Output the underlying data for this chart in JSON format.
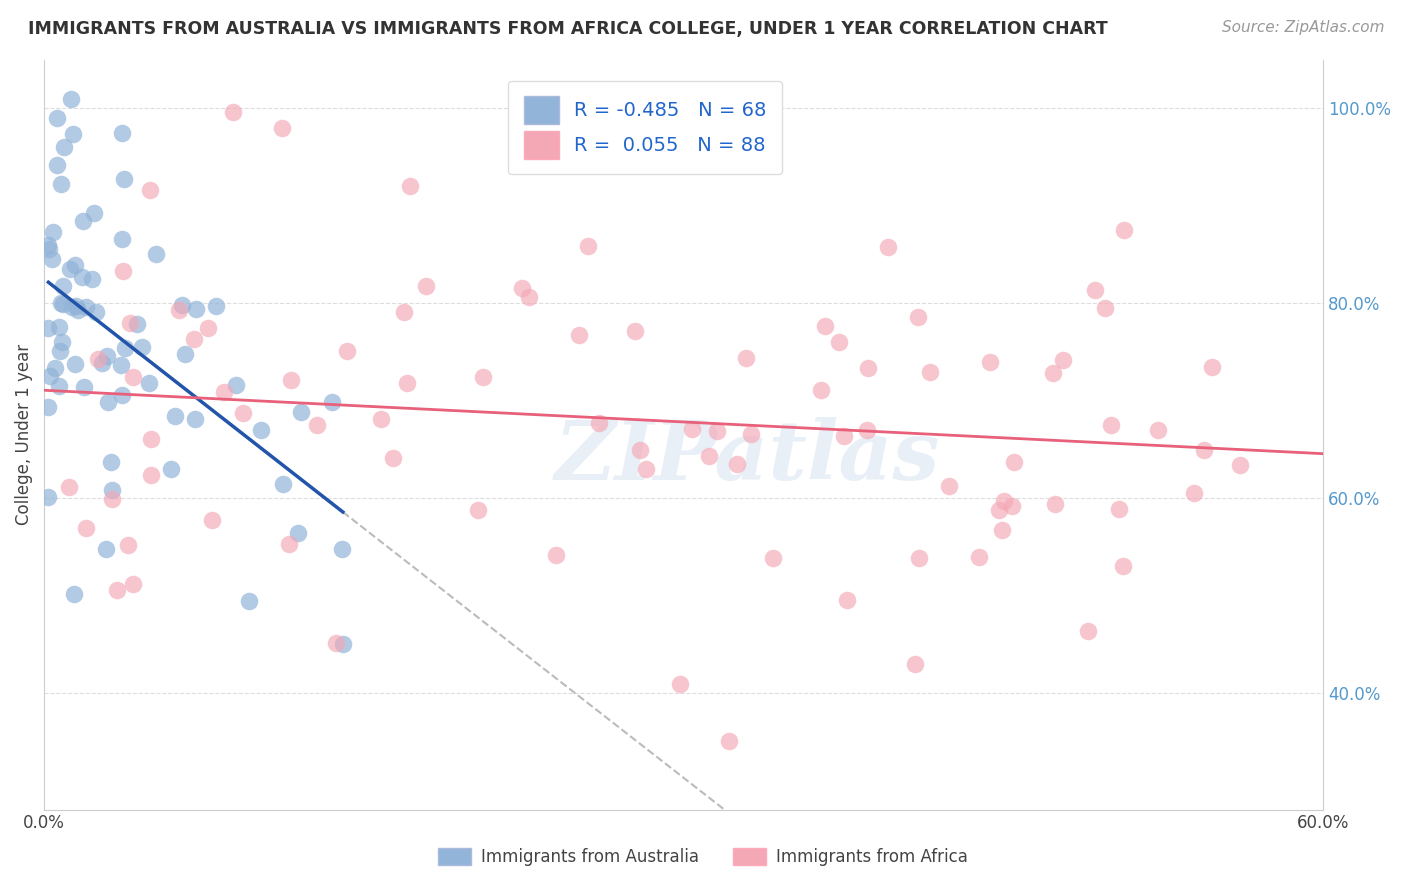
{
  "title": "IMMIGRANTS FROM AUSTRALIA VS IMMIGRANTS FROM AFRICA COLLEGE, UNDER 1 YEAR CORRELATION CHART",
  "source": "Source: ZipAtlas.com",
  "ylabel": "College, Under 1 year",
  "legend_label1": "Immigrants from Australia",
  "legend_label2": "Immigrants from Africa",
  "R1": -0.485,
  "N1": 68,
  "R2": 0.055,
  "N2": 88,
  "xlim": [
    0.0,
    0.6
  ],
  "ylim": [
    0.28,
    1.05
  ],
  "xticks": [
    0.0,
    0.1,
    0.2,
    0.3,
    0.4,
    0.5,
    0.6
  ],
  "xtick_labels": [
    "0.0%",
    "",
    "",
    "",
    "",
    "",
    "60.0%"
  ],
  "yticks": [
    0.4,
    0.6,
    0.8,
    1.0
  ],
  "ytick_labels": [
    "40.0%",
    "60.0%",
    "80.0%",
    "100.0%"
  ],
  "color_australia": "#92B4D8",
  "color_africa": "#F4A7B5",
  "trendline_australia": "#2255AA",
  "trendline_africa": "#E8607A",
  "dashed_color": "#BBBBBB",
  "background_color": "#FFFFFF",
  "grid_color": "#DDDDDD",
  "watermark": "ZIPatlas",
  "aus_seed": 42,
  "afr_seed": 17,
  "legend_R1_text": "R = -0.485   N = 68",
  "legend_R2_text": "R =  0.055   N = 88"
}
